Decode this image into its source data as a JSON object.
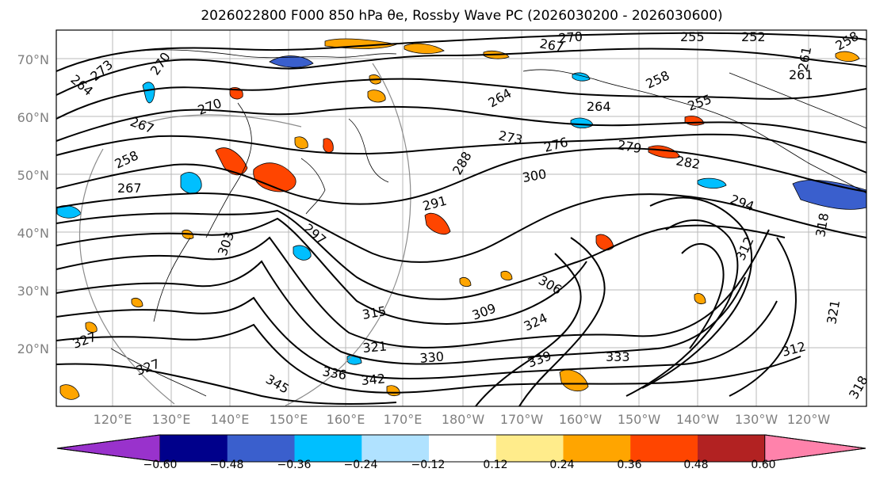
{
  "title": "2026022800 F000 850 hPa θe, Rossby Wave PC (2026030200 - 2026030600)",
  "latitude_labels": [
    "70°N",
    "60°N",
    "50°N",
    "40°N",
    "30°N",
    "20°N"
  ],
  "longitude_labels": [
    "120°E",
    "130°E",
    "140°E",
    "150°E",
    "160°E",
    "170°E",
    "180°W",
    "170°W",
    "160°W",
    "150°W",
    "140°W",
    "130°W",
    "120°W"
  ],
  "contour_labels": [
    "273",
    "270",
    "267",
    "264",
    "270",
    "267",
    "264",
    "261",
    "270",
    "258",
    "255",
    "264",
    "258",
    "255",
    "252",
    "261",
    "258",
    "267",
    "273",
    "276",
    "279",
    "282",
    "288",
    "300",
    "291",
    "297",
    "294",
    "303",
    "306",
    "309",
    "312",
    "315",
    "318",
    "321",
    "324",
    "327",
    "330",
    "333",
    "336",
    "339",
    "342",
    "345",
    "312",
    "318",
    "321",
    "327"
  ],
  "colorbar": {
    "tick_labels": [
      "−0.60",
      "−0.48",
      "−0.36",
      "−0.24",
      "−0.12",
      "0.12",
      "0.24",
      "0.36",
      "0.48",
      "0.60"
    ],
    "colors": [
      "#9932cc",
      "#00008b",
      "#3a5fcd",
      "#00bfff",
      "#b0e2ff",
      "#ffffff",
      "#ffec8b",
      "#ffa500",
      "#ff4500",
      "#b22222",
      "#ff82ab"
    ]
  },
  "anomaly_colors": {
    "neg_strong": "#3a5fcd",
    "neg": "#00bfff",
    "neg_weak": "#b0e2ff",
    "pos_weak": "#ffec8b",
    "pos": "#ffa500",
    "pos_strong": "#ff4500"
  }
}
